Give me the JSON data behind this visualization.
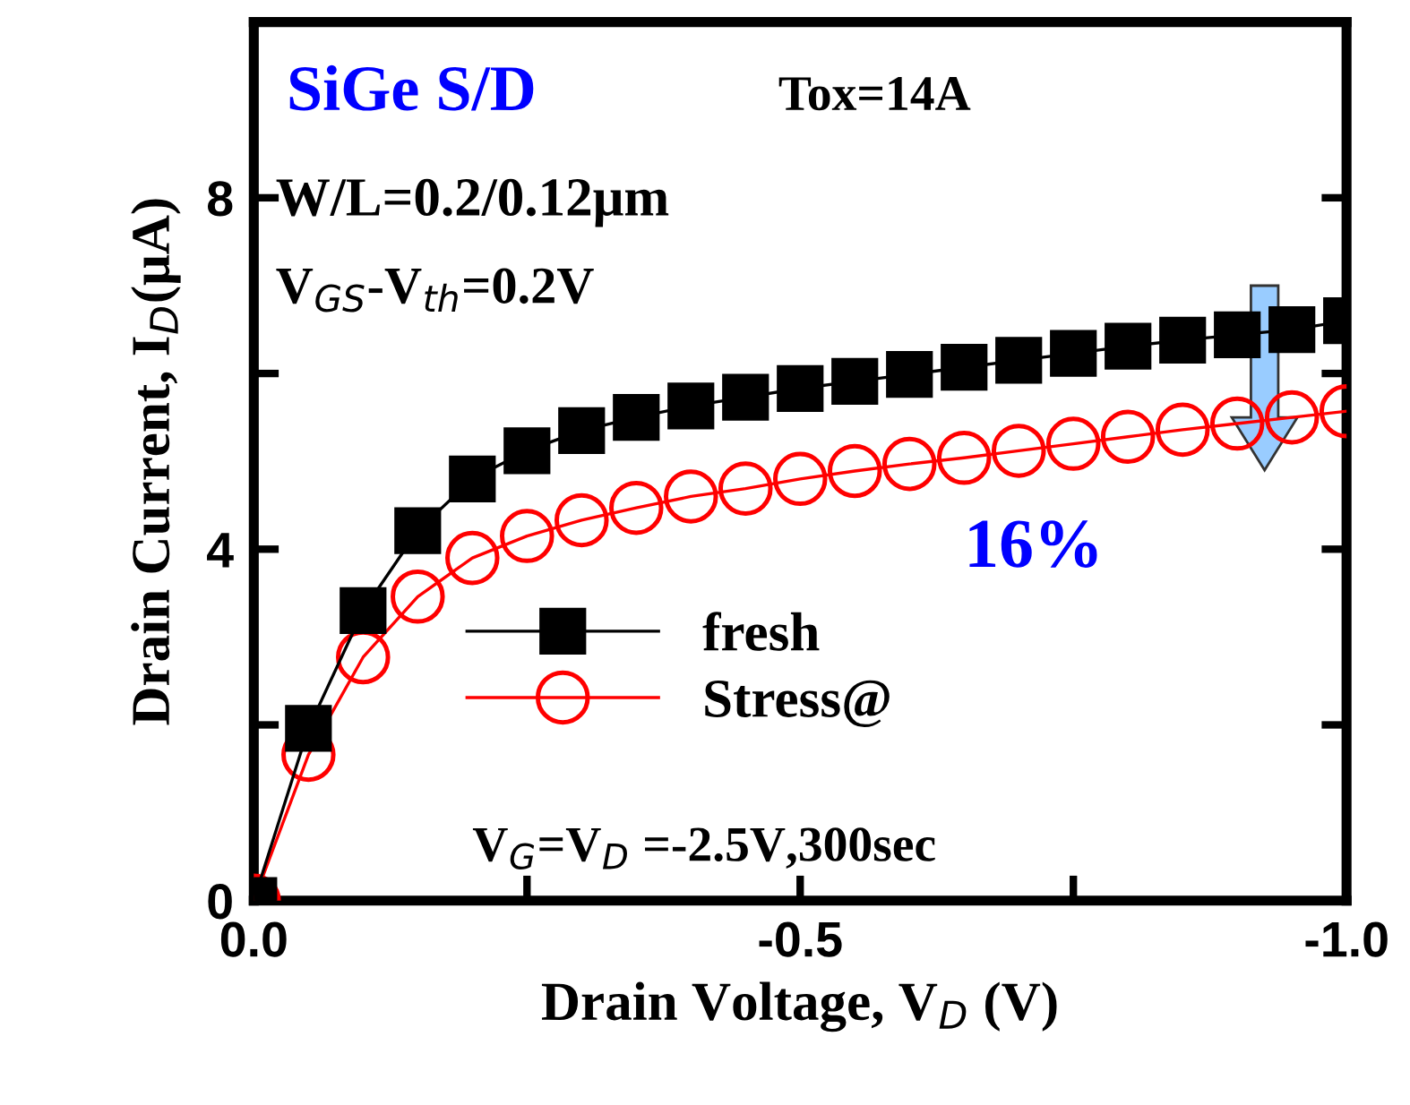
{
  "chart_data": {
    "type": "line",
    "xlabel": "Drain Voltage, V$_{D}$ (V)",
    "ylabel": "Drain Current, I$_{D}$(μA)",
    "x": [
      0,
      -0.05,
      -0.1,
      -0.15,
      -0.2,
      -0.25,
      -0.3,
      -0.35,
      -0.4,
      -0.45,
      -0.5,
      -0.55,
      -0.6,
      -0.65,
      -0.7,
      -0.75,
      -0.8,
      -0.85,
      -0.9,
      -0.95,
      -1.0
    ],
    "series": [
      {
        "name": "fresh",
        "color": "#000000",
        "marker": "square",
        "values": [
          0,
          1.96,
          3.3,
          4.21,
          4.8,
          5.12,
          5.35,
          5.5,
          5.63,
          5.73,
          5.83,
          5.91,
          5.99,
          6.07,
          6.15,
          6.23,
          6.31,
          6.38,
          6.44,
          6.5,
          6.6
        ]
      },
      {
        "name": "Stress@",
        "color": "#ff0000",
        "marker": "circle",
        "values": [
          0,
          1.66,
          2.77,
          3.46,
          3.9,
          4.15,
          4.33,
          4.47,
          4.6,
          4.69,
          4.8,
          4.89,
          4.97,
          5.04,
          5.12,
          5.2,
          5.28,
          5.36,
          5.43,
          5.5,
          5.57
        ]
      }
    ],
    "xlim": [
      0,
      -1.0
    ],
    "xticks": [
      {
        "value": 0,
        "label": "0.0"
      },
      {
        "value": -0.25,
        "label": null
      },
      {
        "value": -0.5,
        "label": "-0.5"
      },
      {
        "value": -0.75,
        "label": null
      },
      {
        "value": -1.0,
        "label": "-1.0"
      }
    ],
    "ylim": [
      0,
      10
    ],
    "yticks": [
      0,
      {
        "value": 2,
        "label": null
      },
      4,
      {
        "value": 6,
        "label": null
      },
      8
    ],
    "grid": false,
    "legend": "bottom",
    "line_style": "solid",
    "annotations": [
      "SiGe S/D",
      "Tox=14A",
      "W/L=0.2/0.12μm",
      "V$_{GS}$-V$_{th}$=0.2V",
      "16%",
      "V$_{G}$=V$_{D}$ =-2.5V,300sec"
    ]
  }
}
